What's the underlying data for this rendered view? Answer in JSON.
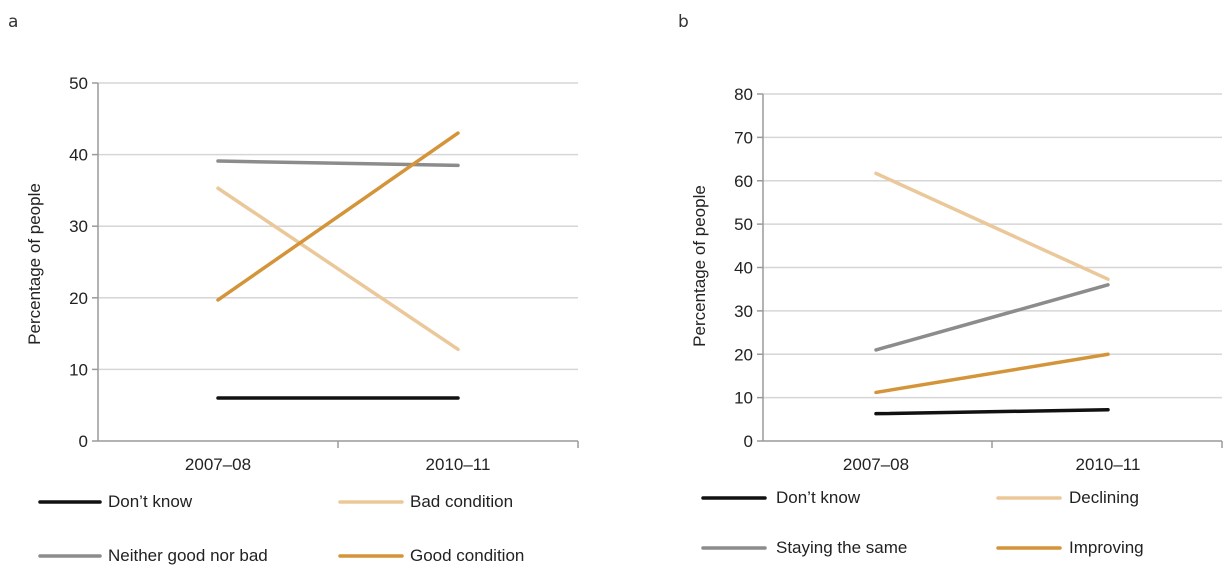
{
  "panels": [
    {
      "label": "a"
    },
    {
      "label": "b"
    }
  ],
  "chart_data": [
    {
      "type": "line",
      "title": "",
      "categories": [
        "2007–08",
        "2010–11"
      ],
      "ylabel": "Percentage of people",
      "xlabel": "",
      "ylim": [
        0,
        50
      ],
      "yticks": [
        0,
        10,
        20,
        30,
        40,
        50
      ],
      "grid": true,
      "legend_position": "bottom",
      "series": [
        {
          "name": "Don’t know",
          "values": [
            6,
            6
          ],
          "color": "#111111"
        },
        {
          "name": "Bad condition",
          "values": [
            35.3,
            12.8
          ],
          "color": "#ebc89a"
        },
        {
          "name": "Neither good nor bad",
          "values": [
            39.1,
            38.5
          ],
          "color": "#8c8c8c"
        },
        {
          "name": "Good condition",
          "values": [
            19.7,
            43
          ],
          "color": "#d4943a"
        }
      ]
    },
    {
      "type": "line",
      "title": "",
      "categories": [
        "2007–08",
        "2010–11"
      ],
      "ylabel": "Percentage of people",
      "xlabel": "",
      "ylim": [
        0,
        80
      ],
      "yticks": [
        0,
        10,
        20,
        30,
        40,
        50,
        60,
        70,
        80
      ],
      "grid": true,
      "legend_position": "bottom",
      "series": [
        {
          "name": "Don’t know",
          "values": [
            6.3,
            7.2
          ],
          "color": "#111111"
        },
        {
          "name": "Declining",
          "values": [
            61.7,
            37.3
          ],
          "color": "#ebc89a"
        },
        {
          "name": "Staying the same",
          "values": [
            21,
            36
          ],
          "color": "#8c8c8c"
        },
        {
          "name": "Improving",
          "values": [
            11.2,
            20
          ],
          "color": "#d4943a"
        }
      ]
    }
  ]
}
